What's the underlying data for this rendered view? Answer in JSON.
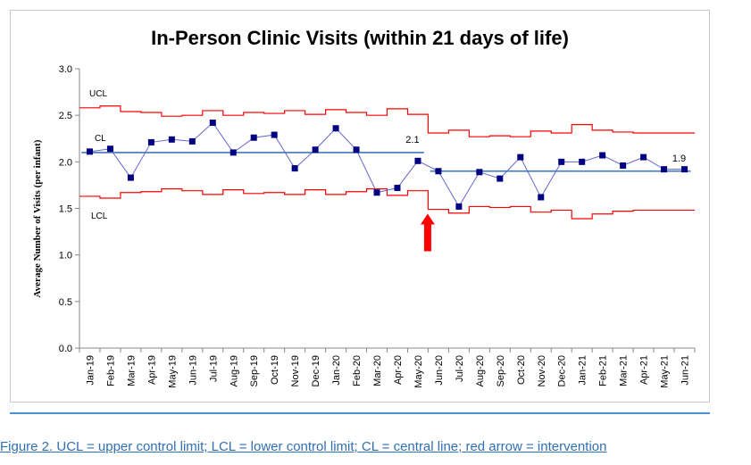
{
  "caption": "Figure 2. UCL = upper control limit; LCL = lower control limit; CL = central line; red arrow = intervention",
  "chart_data": {
    "type": "line",
    "title": "In-Person Clinic Visits (within 21 days of life)",
    "xlabel": "",
    "ylabel": "Average Number of Visits (per infant)",
    "ylim": [
      0,
      3
    ],
    "yticks": [
      "0.0",
      "0.5",
      "1.0",
      "1.5",
      "2.0",
      "2.5",
      "3.0"
    ],
    "grid": false,
    "legend": "none",
    "categories": [
      "Jan-19",
      "Feb-19",
      "Mar-19",
      "Apr-19",
      "May-19",
      "Jun-19",
      "Jul-19",
      "Aug-19",
      "Sep-19",
      "Oct-19",
      "Nov-19",
      "Dec-19",
      "Jan-20",
      "Feb-20",
      "Mar-20",
      "Apr-20",
      "May-20",
      "Jun-20",
      "Jul-20",
      "Aug-20",
      "Sep-20",
      "Oct-20",
      "Nov-20",
      "Dec-20",
      "Jan-21",
      "Feb-21",
      "Mar-21",
      "Apr-21",
      "May-21",
      "Jun-21"
    ],
    "series": [
      {
        "role": "data",
        "color": "#000080",
        "values": [
          2.11,
          2.14,
          1.83,
          2.21,
          2.24,
          2.22,
          2.42,
          2.1,
          2.26,
          2.29,
          1.93,
          2.13,
          2.36,
          2.13,
          1.67,
          1.72,
          2.01,
          1.9,
          1.52,
          1.89,
          1.82,
          2.05,
          1.62,
          2.0,
          2.0,
          2.07,
          1.96,
          2.05,
          1.92,
          1.92
        ]
      },
      {
        "role": "ucl",
        "name": "UCL",
        "color": "#ff0000",
        "values": [
          2.58,
          2.6,
          2.54,
          2.53,
          2.49,
          2.5,
          2.55,
          2.5,
          2.53,
          2.52,
          2.55,
          2.51,
          2.56,
          2.53,
          2.5,
          2.57,
          2.51,
          2.31,
          2.34,
          2.27,
          2.28,
          2.27,
          2.33,
          2.31,
          2.4,
          2.34,
          2.32,
          2.31,
          2.31,
          2.31
        ]
      },
      {
        "role": "lcl",
        "name": "LCL",
        "color": "#ff0000",
        "values": [
          1.63,
          1.61,
          1.67,
          1.68,
          1.71,
          1.69,
          1.65,
          1.7,
          1.66,
          1.67,
          1.65,
          1.7,
          1.65,
          1.68,
          1.71,
          1.64,
          1.69,
          1.49,
          1.45,
          1.52,
          1.51,
          1.52,
          1.46,
          1.48,
          1.39,
          1.44,
          1.47,
          1.48,
          1.48,
          1.48
        ]
      },
      {
        "role": "cl",
        "name": "CL",
        "color": "#4f81bd",
        "segments": [
          {
            "from": "Jan-19",
            "to": "May-20",
            "value": 2.1,
            "label": "2.1"
          },
          {
            "from": "Jun-20",
            "to": "Jun-21",
            "value": 1.9,
            "label": "1.9"
          }
        ]
      }
    ],
    "line_labels": {
      "ucl": "UCL",
      "cl": "CL",
      "lcl": "LCL"
    },
    "annotation": {
      "type": "arrow",
      "color": "#ff0000",
      "category": "Jun-20",
      "meaning": "intervention"
    }
  }
}
